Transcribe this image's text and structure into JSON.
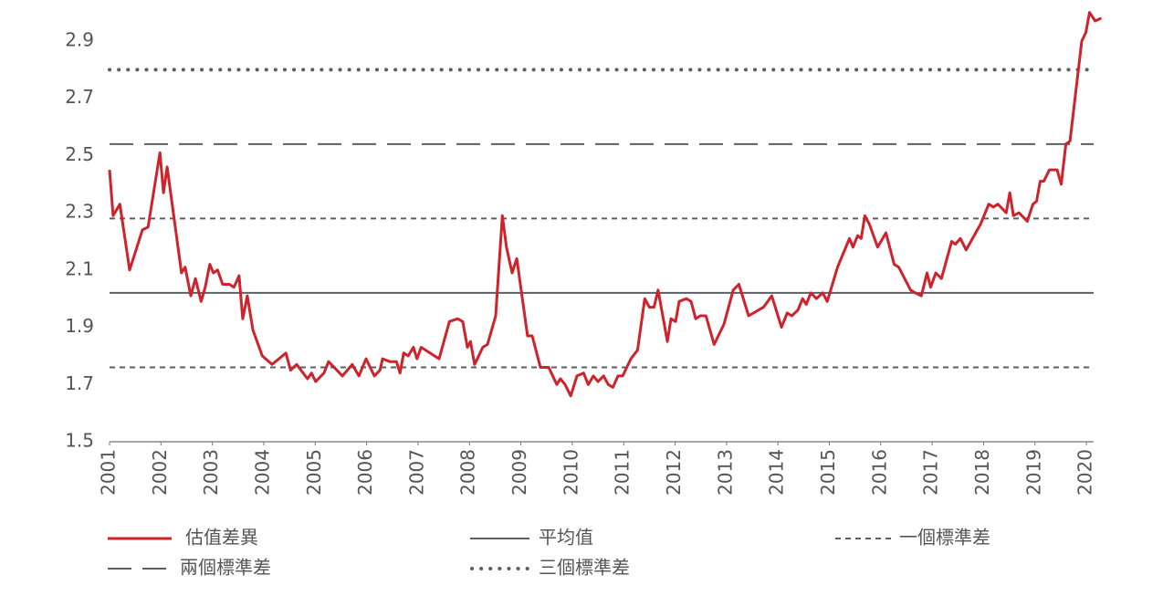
{
  "chart_data": {
    "type": "line",
    "x": [
      2001.0,
      2001.07,
      2001.2,
      2001.39,
      2001.64,
      2001.75,
      2001.98,
      2002.05,
      2002.12,
      2002.4,
      2002.47,
      2002.58,
      2002.67,
      2002.78,
      2002.86,
      2002.95,
      2003.02,
      2003.1,
      2003.2,
      2003.33,
      2003.42,
      2003.52,
      2003.59,
      2003.68,
      2003.79,
      2003.97,
      2004.16,
      2004.43,
      2004.52,
      2004.64,
      2004.85,
      2004.93,
      2005.01,
      2005.17,
      2005.26,
      2005.53,
      2005.72,
      2005.85,
      2005.99,
      2006.15,
      2006.26,
      2006.31,
      2006.45,
      2006.58,
      2006.65,
      2006.72,
      2006.81,
      2006.91,
      2006.98,
      2007.06,
      2007.41,
      2007.61,
      2007.77,
      2007.87,
      2007.96,
      2008.02,
      2008.1,
      2008.26,
      2008.35,
      2008.51,
      2008.64,
      2008.72,
      2008.83,
      2008.92,
      2009.13,
      2009.22,
      2009.38,
      2009.54,
      2009.7,
      2009.77,
      2009.86,
      2009.97,
      2010.09,
      2010.22,
      2010.31,
      2010.41,
      2010.5,
      2010.61,
      2010.7,
      2010.79,
      2010.89,
      2010.98,
      2011.14,
      2011.27,
      2011.41,
      2011.5,
      2011.59,
      2011.67,
      2011.76,
      2011.85,
      2011.92,
      2012.01,
      2012.08,
      2012.22,
      2012.31,
      2012.4,
      2012.49,
      2012.6,
      2012.76,
      2012.95,
      2013.13,
      2013.24,
      2013.43,
      2013.72,
      2013.88,
      2014.07,
      2014.18,
      2014.27,
      2014.39,
      2014.48,
      2014.55,
      2014.64,
      2014.75,
      2014.87,
      2014.96,
      2015.16,
      2015.39,
      2015.46,
      2015.55,
      2015.62,
      2015.69,
      2015.78,
      2015.94,
      2016.1,
      2016.26,
      2016.35,
      2016.58,
      2016.67,
      2016.79,
      2016.9,
      2016.97,
      2017.07,
      2017.18,
      2017.38,
      2017.45,
      2017.55,
      2017.66,
      2017.94,
      2018.1,
      2018.19,
      2018.28,
      2018.44,
      2018.51,
      2018.58,
      2018.69,
      2018.85,
      2018.96,
      2019.03,
      2019.1,
      2019.17,
      2019.28,
      2019.35,
      2019.43,
      2019.51,
      2019.6,
      2019.68,
      2019.91,
      2019.99,
      2020.06,
      2020.17,
      2020.29
    ],
    "series": [
      {
        "name": "估值差異",
        "color": "#d0222b",
        "values": [
          2.45,
          2.29,
          2.33,
          2.1,
          2.24,
          2.25,
          2.51,
          2.37,
          2.46,
          2.09,
          2.11,
          2.01,
          2.07,
          1.99,
          2.04,
          2.12,
          2.09,
          2.1,
          2.05,
          2.05,
          2.04,
          2.08,
          1.93,
          2.01,
          1.89,
          1.8,
          1.77,
          1.81,
          1.75,
          1.77,
          1.72,
          1.74,
          1.71,
          1.74,
          1.78,
          1.73,
          1.77,
          1.73,
          1.79,
          1.73,
          1.75,
          1.79,
          1.78,
          1.78,
          1.74,
          1.81,
          1.8,
          1.83,
          1.79,
          1.83,
          1.79,
          1.92,
          1.93,
          1.92,
          1.83,
          1.85,
          1.77,
          1.83,
          1.84,
          1.94,
          2.29,
          2.18,
          2.09,
          2.14,
          1.87,
          1.87,
          1.76,
          1.76,
          1.7,
          1.72,
          1.7,
          1.66,
          1.73,
          1.74,
          1.7,
          1.73,
          1.71,
          1.73,
          1.7,
          1.69,
          1.73,
          1.73,
          1.79,
          1.82,
          2.0,
          1.97,
          1.97,
          2.03,
          1.94,
          1.85,
          1.93,
          1.92,
          1.99,
          2.0,
          1.99,
          1.93,
          1.94,
          1.94,
          1.84,
          1.91,
          2.03,
          2.05,
          1.94,
          1.97,
          2.01,
          1.9,
          1.95,
          1.94,
          1.96,
          2.0,
          1.98,
          2.02,
          2.0,
          2.02,
          1.99,
          2.11,
          2.21,
          2.18,
          2.22,
          2.21,
          2.29,
          2.26,
          2.18,
          2.23,
          2.12,
          2.11,
          2.03,
          2.02,
          2.01,
          2.09,
          2.04,
          2.09,
          2.07,
          2.2,
          2.19,
          2.21,
          2.17,
          2.26,
          2.33,
          2.32,
          2.33,
          2.3,
          2.37,
          2.29,
          2.3,
          2.27,
          2.33,
          2.34,
          2.41,
          2.41,
          2.45,
          2.45,
          2.45,
          2.4,
          2.54,
          2.55,
          2.9,
          2.93,
          3.0,
          2.97,
          2.98
        ]
      }
    ],
    "reference_lines": [
      {
        "name": "平均值",
        "color": "#5a5f66",
        "style": "solid",
        "values": [
          2.02
        ]
      },
      {
        "name": "一個標準差",
        "color": "#5a5f66",
        "style": "dashed",
        "values": [
          2.28,
          1.76
        ]
      },
      {
        "name": "兩個標準差",
        "color": "#5a5f66",
        "style": "long-dashed",
        "values": [
          2.54
        ]
      },
      {
        "name": "三個標準差",
        "color": "#5a5f66",
        "style": "dotted",
        "values": [
          2.8
        ]
      }
    ],
    "xlim": [
      2001,
      2020.3
    ],
    "xticks": [
      2001,
      2002,
      2003,
      2004,
      2005,
      2006,
      2007,
      2008,
      2009,
      2010,
      2011,
      2012,
      2013,
      2014,
      2015,
      2016,
      2017,
      2018,
      2019,
      2020
    ],
    "ylim": [
      1.5,
      3.0
    ],
    "yticks": [
      1.5,
      1.7,
      1.9,
      2.1,
      2.3,
      2.5,
      2.7,
      2.9
    ]
  }
}
